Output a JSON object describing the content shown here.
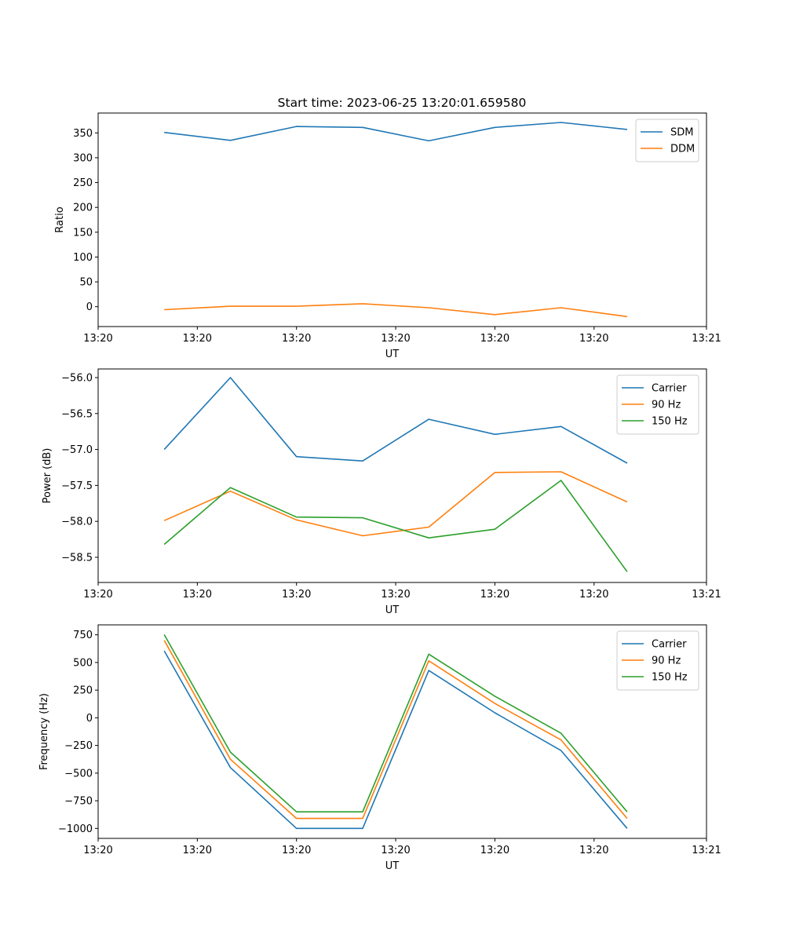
{
  "figure": {
    "title": "Start time: 2023-06-25 13:20:01.659580"
  },
  "chart_data": [
    {
      "type": "line",
      "xlabel": "UT",
      "ylabel": "Ratio",
      "x": [
        1,
        2,
        3,
        4,
        5,
        6,
        7,
        8
      ],
      "xlim": [
        0,
        9.2
      ],
      "xticks": [
        0,
        1.5,
        3,
        4.5,
        6,
        7.5,
        9.2
      ],
      "xticklabels": [
        "13:20",
        "13:20",
        "13:20",
        "13:20",
        "13:20",
        "13:20",
        "13:21"
      ],
      "ylim": [
        -40,
        390
      ],
      "yticks": [
        0,
        50,
        100,
        150,
        200,
        250,
        300,
        350
      ],
      "yticklabels": [
        "0",
        "50",
        "100",
        "150",
        "200",
        "250",
        "300",
        "350"
      ],
      "legend": "top-right",
      "series": [
        {
          "name": "SDM",
          "color": "#1f77b4",
          "values": [
            351,
            335,
            363,
            361,
            334,
            361,
            371,
            357
          ]
        },
        {
          "name": "DDM",
          "color": "#ff7f0e",
          "values": [
            -6,
            1,
            1,
            6,
            -2,
            -16,
            -2,
            -20
          ]
        }
      ]
    },
    {
      "type": "line",
      "xlabel": "UT",
      "ylabel": "Power (dB)",
      "x": [
        1,
        2,
        3,
        4,
        5,
        6,
        7,
        8
      ],
      "xlim": [
        0,
        9.2
      ],
      "xticks": [
        0,
        1.5,
        3,
        4.5,
        6,
        7.5,
        9.2
      ],
      "xticklabels": [
        "13:20",
        "13:20",
        "13:20",
        "13:20",
        "13:20",
        "13:20",
        "13:21"
      ],
      "ylim": [
        -58.85,
        -55.88
      ],
      "yticks": [
        -58.5,
        -58.0,
        -57.5,
        -57.0,
        -56.5,
        -56.0
      ],
      "yticklabels": [
        "−58.5",
        "−58.0",
        "−57.5",
        "−57.0",
        "−56.5",
        "−56.0"
      ],
      "legend": "top-right",
      "series": [
        {
          "name": "Carrier",
          "color": "#1f77b4",
          "values": [
            -57.0,
            -56.0,
            -57.1,
            -57.16,
            -56.58,
            -56.79,
            -56.68,
            -57.19
          ]
        },
        {
          "name": "90 Hz",
          "color": "#ff7f0e",
          "values": [
            -57.99,
            -57.58,
            -57.98,
            -58.2,
            -58.08,
            -57.32,
            -57.31,
            -57.73
          ]
        },
        {
          "name": "150 Hz",
          "color": "#2ca02c",
          "values": [
            -58.32,
            -57.53,
            -57.94,
            -57.95,
            -58.23,
            -58.11,
            -57.43,
            -58.7
          ]
        }
      ]
    },
    {
      "type": "line",
      "xlabel": "UT",
      "ylabel": "Frequency (Hz)",
      "x": [
        1,
        2,
        3,
        4,
        5,
        6,
        7,
        8
      ],
      "xlim": [
        0,
        9.2
      ],
      "xticks": [
        0,
        1.5,
        3,
        4.5,
        6,
        7.5,
        9.2
      ],
      "xticklabels": [
        "13:20",
        "13:20",
        "13:20",
        "13:20",
        "13:20",
        "13:20",
        "13:21"
      ],
      "ylim": [
        -1090,
        840
      ],
      "yticks": [
        -1000,
        -750,
        -500,
        -250,
        0,
        250,
        500,
        750
      ],
      "yticklabels": [
        "−1000",
        "−750",
        "−500",
        "−250",
        "0",
        "250",
        "500",
        "750"
      ],
      "legend": "top-right",
      "series": [
        {
          "name": "Carrier",
          "color": "#1f77b4",
          "values": [
            605,
            -450,
            -1000,
            -1000,
            428,
            45,
            -296,
            -1000
          ]
        },
        {
          "name": "90 Hz",
          "color": "#ff7f0e",
          "values": [
            700,
            -375,
            -910,
            -910,
            515,
            130,
            -200,
            -910
          ]
        },
        {
          "name": "150 Hz",
          "color": "#2ca02c",
          "values": [
            752,
            -310,
            -850,
            -850,
            575,
            195,
            -140,
            -850
          ]
        }
      ]
    }
  ]
}
